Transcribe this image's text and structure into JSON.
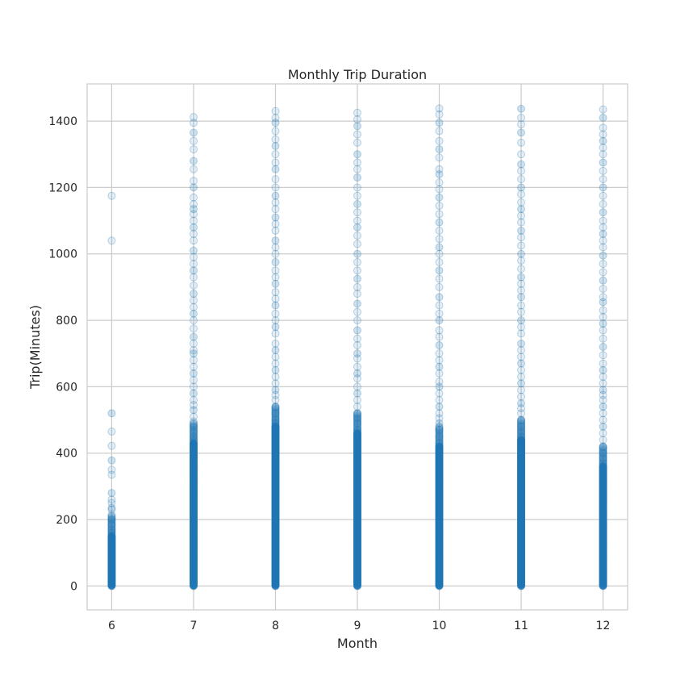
{
  "chart_data": {
    "type": "scatter",
    "title": "Monthly Trip Duration",
    "xlabel": "Month",
    "ylabel": "Trip(Minutes)",
    "xlim": [
      5.7,
      12.3
    ],
    "ylim": [
      -72,
      1512
    ],
    "xticks": [
      6,
      7,
      8,
      9,
      10,
      11,
      12
    ],
    "yticks": [
      0,
      200,
      400,
      600,
      800,
      1000,
      1200,
      1400
    ],
    "grid": true,
    "marker_color": "#1f77b4",
    "marker_alpha": 0.12,
    "series": [
      {
        "x": 6,
        "dense_max": 150,
        "values": [
          160,
          170,
          185,
          200,
          215,
          230,
          235,
          250,
          260,
          280,
          335,
          350,
          378,
          422,
          465,
          520,
          1040,
          1175
        ]
      },
      {
        "x": 7,
        "dense_max": 430,
        "values": [
          440,
          450,
          465,
          480,
          495,
          510,
          530,
          545,
          560,
          580,
          600,
          620,
          640,
          660,
          680,
          700,
          710,
          730,
          750,
          775,
          800,
          820,
          840,
          860,
          880,
          905,
          930,
          950,
          970,
          990,
          1010,
          1040,
          1060,
          1080,
          1100,
          1120,
          1135,
          1150,
          1170,
          1200,
          1220,
          1255,
          1280,
          1315,
          1340,
          1365,
          1395,
          1412
        ]
      },
      {
        "x": 8,
        "dense_max": 480,
        "values": [
          490,
          500,
          520,
          540,
          560,
          575,
          590,
          610,
          630,
          650,
          670,
          690,
          710,
          730,
          760,
          780,
          800,
          820,
          845,
          865,
          885,
          910,
          930,
          950,
          975,
          1000,
          1020,
          1040,
          1070,
          1090,
          1110,
          1135,
          1155,
          1175,
          1200,
          1225,
          1255,
          1275,
          1300,
          1325,
          1345,
          1370,
          1395,
          1410,
          1430
        ]
      },
      {
        "x": 9,
        "dense_max": 460,
        "values": [
          470,
          490,
          505,
          520,
          540,
          560,
          580,
          600,
          625,
          640,
          660,
          685,
          700,
          725,
          745,
          770,
          800,
          825,
          850,
          880,
          900,
          925,
          950,
          975,
          1000,
          1030,
          1055,
          1080,
          1100,
          1125,
          1150,
          1175,
          1200,
          1230,
          1255,
          1275,
          1300,
          1335,
          1360,
          1385,
          1405,
          1425
        ]
      },
      {
        "x": 10,
        "dense_max": 420,
        "values": [
          430,
          450,
          470,
          490,
          505,
          520,
          540,
          560,
          580,
          600,
          615,
          640,
          660,
          680,
          700,
          725,
          750,
          770,
          800,
          820,
          845,
          870,
          900,
          925,
          950,
          975,
          1000,
          1020,
          1045,
          1070,
          1095,
          1120,
          1145,
          1170,
          1195,
          1215,
          1240,
          1255,
          1290,
          1315,
          1340,
          1370,
          1395,
          1420,
          1438
        ]
      },
      {
        "x": 11,
        "dense_max": 440,
        "values": [
          450,
          465,
          480,
          500,
          520,
          535,
          550,
          570,
          590,
          610,
          630,
          650,
          670,
          690,
          710,
          730,
          760,
          780,
          800,
          825,
          845,
          870,
          890,
          910,
          930,
          955,
          980,
          1000,
          1025,
          1050,
          1070,
          1095,
          1115,
          1135,
          1155,
          1180,
          1200,
          1225,
          1250,
          1270,
          1300,
          1335,
          1365,
          1390,
          1410,
          1437
        ]
      },
      {
        "x": 12,
        "dense_max": 360,
        "values": [
          370,
          385,
          400,
          420,
          440,
          460,
          480,
          500,
          520,
          540,
          560,
          575,
          590,
          610,
          630,
          650,
          670,
          695,
          720,
          745,
          770,
          790,
          810,
          830,
          855,
          870,
          895,
          920,
          945,
          970,
          995,
          1020,
          1040,
          1060,
          1080,
          1100,
          1125,
          1150,
          1175,
          1200,
          1225,
          1250,
          1275,
          1300,
          1320,
          1340,
          1360,
          1380,
          1410,
          1435
        ]
      }
    ]
  }
}
